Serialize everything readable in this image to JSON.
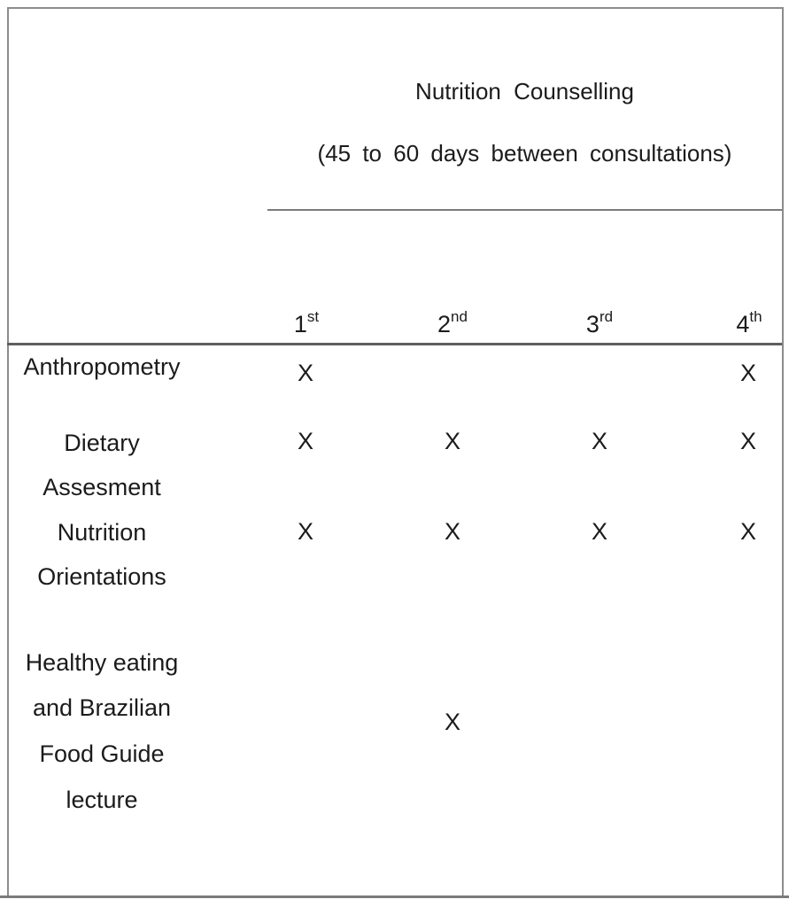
{
  "figure": {
    "title": "Nutrition Counselling",
    "subtitle": "(45 to 60 days between consultations)",
    "columns": [
      {
        "base": "1",
        "sup": "st"
      },
      {
        "base": "2",
        "sup": "nd"
      },
      {
        "base": "3",
        "sup": "rd"
      },
      {
        "base": "4",
        "sup": "th"
      }
    ],
    "mark_glyph": "X",
    "rows": [
      {
        "label_lines": [
          "Anthropometry"
        ],
        "marks": [
          true,
          false,
          false,
          true
        ]
      },
      {
        "label_lines": [
          "Dietary",
          "Assesment"
        ],
        "marks": [
          true,
          true,
          true,
          true
        ]
      },
      {
        "label_lines": [
          "Nutrition",
          "Orientations"
        ],
        "marks": [
          true,
          true,
          true,
          true
        ]
      },
      {
        "label_lines": [
          "Healthy eating",
          "and Brazilian",
          "Food Guide",
          "lecture"
        ],
        "marks": [
          false,
          true,
          false,
          false
        ]
      }
    ],
    "colors": {
      "text": "#1b1b1b",
      "rule_light": "#7b7b7b",
      "rule_dark": "#5e5e5e",
      "frame": "#8c8c8c"
    }
  }
}
